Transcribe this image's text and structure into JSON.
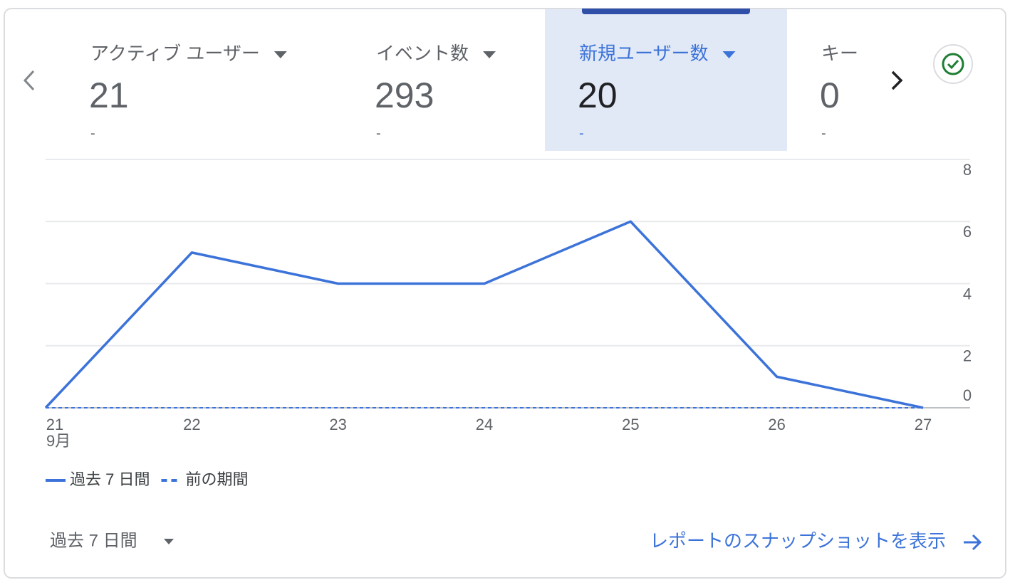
{
  "tabs": [
    {
      "title": "アクティブ ユーザー",
      "value": "21",
      "change": "-"
    },
    {
      "title": "イベント数",
      "value": "293",
      "change": "-"
    },
    {
      "title": "新規ユーザー数",
      "value": "20",
      "change": "-"
    },
    {
      "title": "キー",
      "value": "0",
      "change": "-"
    }
  ],
  "chart_data": {
    "type": "line",
    "categories": [
      "21",
      "22",
      "23",
      "24",
      "25",
      "26",
      "27"
    ],
    "x_month_label": "9月",
    "series": [
      {
        "name": "過去 7 日間",
        "color": "#3c73d9",
        "style": "solid",
        "values": [
          0,
          5,
          4,
          4,
          6,
          1,
          0
        ]
      },
      {
        "name": "前の期間",
        "color": "#3c73d9",
        "style": "dashed",
        "values": [
          0,
          0,
          0,
          0,
          0,
          0,
          0
        ]
      }
    ],
    "ylim": [
      0,
      8
    ],
    "yticks": [
      0,
      2,
      4,
      6,
      8
    ],
    "grid": true,
    "y_axis_side": "right"
  },
  "footer": {
    "period": "過去 7 日間",
    "link": "レポートのスナップショットを表示"
  }
}
